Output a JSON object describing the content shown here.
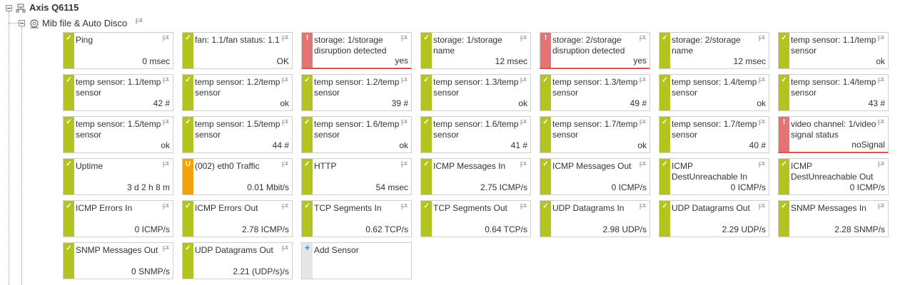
{
  "tree": {
    "device": {
      "name": "Axis Q6115",
      "icon": "device-icon"
    },
    "group": {
      "name": "Mib file & Auto Disco",
      "icon": "group-icon"
    }
  },
  "colors": {
    "up": "#b4c41e",
    "down": "#e57373",
    "unusual": "#f0a30a",
    "add": "#e6e6e6"
  },
  "sensors": [
    {
      "name": "Ping",
      "value": "0 msec",
      "status": "up",
      "mark": "✓"
    },
    {
      "name": "fan: 1.1/fan status: 1.1",
      "value": "OK",
      "status": "up",
      "mark": "✓"
    },
    {
      "name": "storage: 1/storage disruption detected",
      "value": "yes",
      "status": "down",
      "mark": "!"
    },
    {
      "name": "storage: 1/storage name",
      "value": "12 msec",
      "status": "up",
      "mark": "✓"
    },
    {
      "name": "storage: 2/storage disruption detected",
      "value": "yes",
      "status": "down",
      "mark": "!"
    },
    {
      "name": "storage: 2/storage name",
      "value": "12 msec",
      "status": "up",
      "mark": "✓"
    },
    {
      "name": "temp sensor: 1.1/temp sensor",
      "value": "ok",
      "status": "up",
      "mark": "✓"
    },
    {
      "name": "temp sensor: 1.1/temp sensor",
      "value": "42 #",
      "status": "up",
      "mark": "✓"
    },
    {
      "name": "temp sensor: 1.2/temp sensor",
      "value": "ok",
      "status": "up",
      "mark": "✓"
    },
    {
      "name": "temp sensor: 1.2/temp sensor",
      "value": "39 #",
      "status": "up",
      "mark": "✓"
    },
    {
      "name": "temp sensor: 1.3/temp sensor",
      "value": "ok",
      "status": "up",
      "mark": "✓"
    },
    {
      "name": "temp sensor: 1.3/temp sensor",
      "value": "49 #",
      "status": "up",
      "mark": "✓"
    },
    {
      "name": "temp sensor: 1.4/temp sensor",
      "value": "ok",
      "status": "up",
      "mark": "✓"
    },
    {
      "name": "temp sensor: 1.4/temp sensor",
      "value": "43 #",
      "status": "up",
      "mark": "✓"
    },
    {
      "name": "temp sensor: 1.5/temp sensor",
      "value": "ok",
      "status": "up",
      "mark": "✓"
    },
    {
      "name": "temp sensor: 1.5/temp sensor",
      "value": "44 #",
      "status": "up",
      "mark": "✓"
    },
    {
      "name": "temp sensor: 1.6/temp sensor",
      "value": "ok",
      "status": "up",
      "mark": "✓"
    },
    {
      "name": "temp sensor: 1.6/temp sensor",
      "value": "41 #",
      "status": "up",
      "mark": "✓"
    },
    {
      "name": "temp sensor: 1.7/temp sensor",
      "value": "ok",
      "status": "up",
      "mark": "✓"
    },
    {
      "name": "temp sensor: 1.7/temp sensor",
      "value": "40 #",
      "status": "up",
      "mark": "✓"
    },
    {
      "name": "video channel: 1/video signal status",
      "value": "noSignal",
      "status": "down",
      "mark": "!"
    },
    {
      "name": "Uptime",
      "value": "3 d 2 h 8 m",
      "status": "up",
      "mark": "✓"
    },
    {
      "name": "(002) eth0 Traffic",
      "value": "0.01 Mbit/s",
      "status": "unusual",
      "mark": "U"
    },
    {
      "name": "HTTP",
      "value": "54 msec",
      "status": "up",
      "mark": "✓"
    },
    {
      "name": "ICMP Messages In",
      "value": "2.75 ICMP/s",
      "status": "up",
      "mark": "✓"
    },
    {
      "name": "ICMP Messages Out",
      "value": "0 ICMP/s",
      "status": "up",
      "mark": "✓"
    },
    {
      "name": "ICMP DestUnreachable In",
      "value": "0 ICMP/s",
      "status": "up",
      "mark": "✓"
    },
    {
      "name": "ICMP DestUnreachable Out",
      "value": "0 ICMP/s",
      "status": "up",
      "mark": "✓"
    },
    {
      "name": "ICMP Errors In",
      "value": "0 ICMP/s",
      "status": "up",
      "mark": "✓"
    },
    {
      "name": "ICMP Errors Out",
      "value": "2.78 ICMP/s",
      "status": "up",
      "mark": "✓"
    },
    {
      "name": "TCP Segments In",
      "value": "0.62 TCP/s",
      "status": "up",
      "mark": "✓"
    },
    {
      "name": "TCP Segments Out",
      "value": "0.64 TCP/s",
      "status": "up",
      "mark": "✓"
    },
    {
      "name": "UDP Datagrams In",
      "value": "2.98 UDP/s",
      "status": "up",
      "mark": "✓"
    },
    {
      "name": "UDP Datagrams Out",
      "value": "2.29 UDP/s",
      "status": "up",
      "mark": "✓"
    },
    {
      "name": "SNMP Messages In",
      "value": "2.28 SNMP/s",
      "status": "up",
      "mark": "✓"
    },
    {
      "name": "SNMP Messages Out",
      "value": "0 SNMP/s",
      "status": "up",
      "mark": "✓"
    },
    {
      "name": "UDP Datagrams Out",
      "value": "2.21 (UDP/s)/s",
      "status": "up",
      "mark": "✓"
    },
    {
      "name": "Add Sensor",
      "value": "",
      "status": "add",
      "mark": "+"
    }
  ]
}
